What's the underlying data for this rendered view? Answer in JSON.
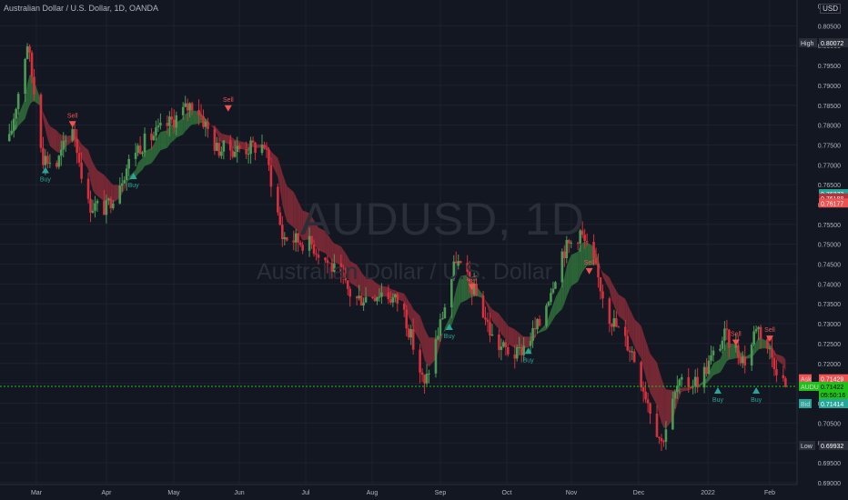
{
  "header": {
    "title": "Australian Dollar / U.S. Dollar, 1D, OANDA",
    "currency": "USD"
  },
  "watermark": {
    "symbol": "AUDUSD, 1D",
    "name": "Australian Dollar / U.S. Dollar"
  },
  "colors": {
    "background": "#131722",
    "grid": "#1e222d",
    "up": "#4c9a56",
    "down": "#d6303c",
    "cloud_up": "#2f6b3a",
    "cloud_down": "#7e2a36",
    "buy": "#26a69a",
    "sell": "#ef5350",
    "current": "#22c11a"
  },
  "chart_data": {
    "type": "candlestick",
    "symbol": "AUDUSD",
    "interval": "1D",
    "x_labels": [
      "Mar",
      "Apr",
      "May",
      "Jun",
      "Jul",
      "Aug",
      "Sep",
      "Oct",
      "Nov",
      "Dec",
      "2022",
      "Feb"
    ],
    "y_ticks": [
      "0.80500",
      "0.80000",
      "0.79500",
      "0.79000",
      "0.78500",
      "0.78000",
      "0.77500",
      "0.77000",
      "0.76500",
      "0.76000",
      "0.75500",
      "0.75000",
      "0.74500",
      "0.74000",
      "0.73500",
      "0.73000",
      "0.72500",
      "0.72000",
      "0.71500",
      "0.71000",
      "0.70500",
      "0.70000",
      "0.69500",
      "0.69000"
    ],
    "y_top_partial": "0.81000",
    "ylim": [
      0.6895,
      0.8115
    ],
    "price_path": [
      [
        "Feb 17",
        0.776
      ],
      [
        "Feb 25",
        0.8007
      ],
      [
        "Mar 4",
        0.772
      ],
      [
        "Mar 10",
        0.77
      ],
      [
        "Mar 17",
        0.78
      ],
      [
        "Mar 24",
        0.76
      ],
      [
        "Apr 1",
        0.759
      ],
      [
        "Apr 14",
        0.774
      ],
      [
        "Apr 28",
        0.78
      ],
      [
        "May 10",
        0.786
      ],
      [
        "May 20",
        0.774
      ],
      [
        "Jun 1",
        0.774
      ],
      [
        "Jun 10",
        0.775
      ],
      [
        "Jun 18",
        0.752
      ],
      [
        "Jul 1",
        0.75
      ],
      [
        "Jul 9",
        0.745
      ],
      [
        "Jul 20",
        0.736
      ],
      [
        "Aug 1",
        0.738
      ],
      [
        "Aug 10",
        0.735
      ],
      [
        "Aug 20",
        0.714
      ],
      [
        "Aug 27",
        0.73
      ],
      [
        "Sep 3",
        0.746
      ],
      [
        "Sep 13",
        0.736
      ],
      [
        "Sep 20",
        0.725
      ],
      [
        "Sep 30",
        0.722
      ],
      [
        "Oct 10",
        0.73
      ],
      [
        "Oct 20",
        0.748
      ],
      [
        "Oct 28",
        0.753
      ],
      [
        "Nov 3",
        0.745
      ],
      [
        "Nov 10",
        0.732
      ],
      [
        "Nov 20",
        0.723
      ],
      [
        "Dec 3",
        0.7
      ],
      [
        "Dec 10",
        0.714
      ],
      [
        "Dec 20",
        0.716
      ],
      [
        "Dec 31",
        0.727
      ],
      [
        "Jan 10",
        0.72
      ],
      [
        "Jan 14",
        0.73
      ],
      [
        "Jan 20",
        0.723
      ],
      [
        "Jan 27",
        0.7142
      ]
    ],
    "signals": [
      {
        "type": "Sell",
        "date": "Mar 17",
        "price": 0.781
      },
      {
        "type": "Buy",
        "date": "Mar 5",
        "price": 0.7695
      },
      {
        "type": "Buy",
        "date": "Apr 13",
        "price": 0.768
      },
      {
        "type": "Sell",
        "date": "May 25",
        "price": 0.785
      },
      {
        "type": "Sell",
        "date": "Sep 10",
        "price": 0.74
      },
      {
        "type": "Buy",
        "date": "Aug 31",
        "price": 0.73
      },
      {
        "type": "Buy",
        "date": "Oct 5",
        "price": 0.724
      },
      {
        "type": "Sell",
        "date": "Nov 1",
        "price": 0.744
      },
      {
        "type": "Buy",
        "date": "Dec 28",
        "price": 0.714
      },
      {
        "type": "Sell",
        "date": "Jan 5",
        "price": 0.726
      },
      {
        "type": "Buy",
        "date": "Jan 14",
        "price": 0.714
      },
      {
        "type": "Sell",
        "date": "Jan 20",
        "price": 0.727
      }
    ],
    "price_labels": {
      "high": {
        "label": "High",
        "value": "0.80072"
      },
      "low": {
        "label": "Low",
        "value": "0.69932"
      },
      "ask": {
        "label": "Ask",
        "value": "0.71429"
      },
      "bid": {
        "label": "Bid",
        "value": "0.71414"
      },
      "last": {
        "label": "AUDUSD",
        "value": "0.71422",
        "countdown": "05:50:16"
      },
      "ma1": {
        "value": "0.76273"
      },
      "ma2": {
        "value": "0.76188"
      },
      "ma3": {
        "value": "0.76177"
      }
    }
  }
}
